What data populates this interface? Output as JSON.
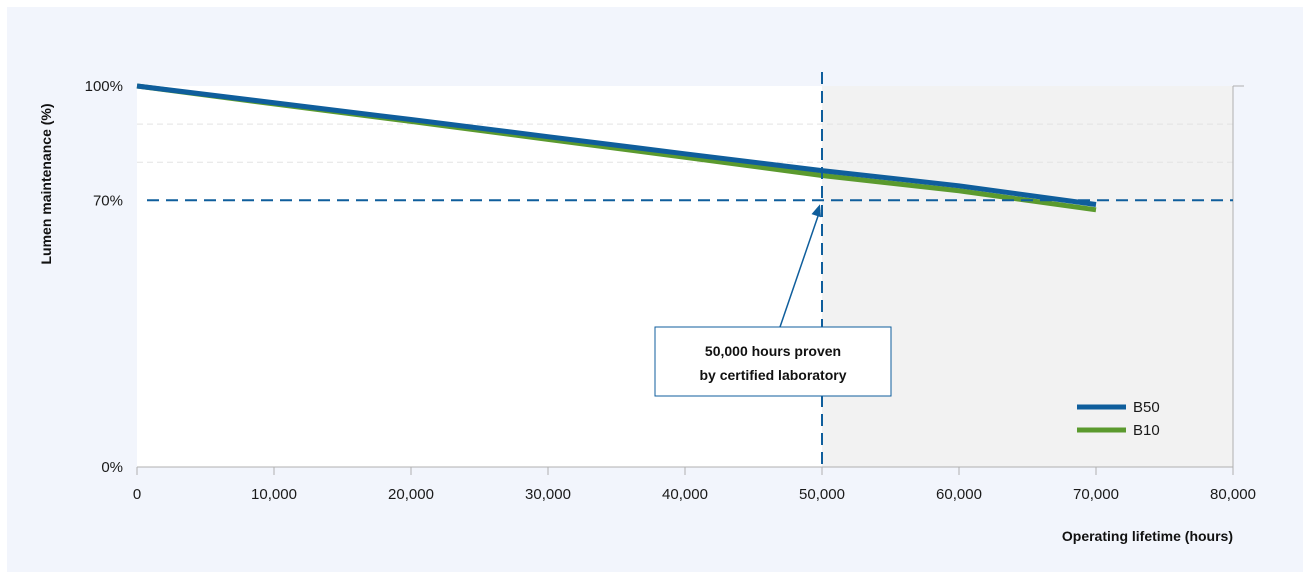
{
  "chart_data": {
    "type": "line",
    "xlabel": "Operating lifetime (hours)",
    "ylabel": "Lumen maintenance (%)",
    "xlim": [
      0,
      80000
    ],
    "ylim": [
      0,
      100
    ],
    "x_ticks": [
      "0",
      "10,000",
      "20,000",
      "30,000",
      "40,000",
      "50,000",
      "60,000",
      "70,000",
      "80,000"
    ],
    "y_ticks": [
      {
        "value": 0,
        "label": "0%"
      },
      {
        "value": 70,
        "label": "70%"
      },
      {
        "value": 100,
        "label": "100%"
      }
    ],
    "series": [
      {
        "name": "B50",
        "color": "#0f5e9c",
        "x": [
          0,
          10000,
          20000,
          30000,
          40000,
          50000,
          60000,
          70000
        ],
        "y": [
          100,
          95.6,
          91.2,
          86.7,
          82.2,
          77.8,
          73.8,
          68.9
        ]
      },
      {
        "name": "B10",
        "color": "#5b9a2e",
        "x": [
          0,
          10000,
          20000,
          30000,
          40000,
          50000,
          60000,
          70000
        ],
        "y": [
          100,
          95.3,
          90.7,
          86.0,
          81.3,
          76.5,
          72.5,
          67.5
        ]
      }
    ],
    "reference_lines": {
      "horizontal_y": 70,
      "vertical_x": 50000,
      "color": "#0f5e9c",
      "style": "dashed"
    },
    "shaded_region": {
      "x_from": 50000,
      "x_to": 80000,
      "color": "#f2f2f2"
    },
    "light_gridlines_y": [
      80,
      90
    ],
    "annotation": {
      "line1": "50,000 hours proven",
      "line2": "by certified laboratory",
      "points_to": {
        "x": 50000,
        "y": 70
      }
    },
    "legend": {
      "position": "bottom-right"
    },
    "grid": false
  }
}
